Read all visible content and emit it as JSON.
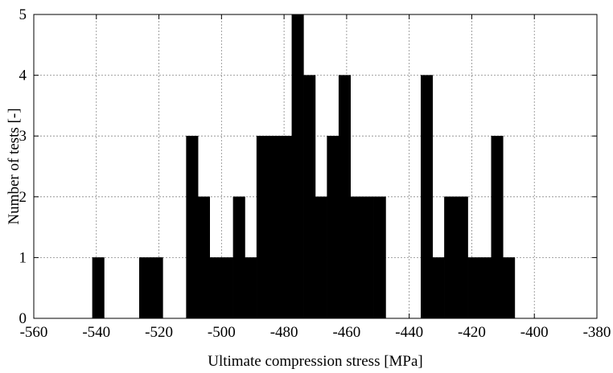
{
  "chart_data": {
    "type": "bar",
    "title": "",
    "xlabel": "Ultimate compression stress [MPa]",
    "ylabel": "Number of tests [-]",
    "xlim": [
      -560,
      -380
    ],
    "ylim": [
      0,
      5
    ],
    "xticks": [
      -560,
      -540,
      -520,
      -500,
      -480,
      -460,
      -440,
      -420,
      -400,
      -380
    ],
    "yticks": [
      0,
      1,
      2,
      3,
      4,
      5
    ],
    "grid": true,
    "bar_color": "#000000",
    "bin_width": 3.75,
    "bins": [
      {
        "x0": -541.25,
        "value": 1
      },
      {
        "x0": -526.25,
        "value": 1
      },
      {
        "x0": -522.5,
        "value": 1
      },
      {
        "x0": -511.25,
        "value": 3
      },
      {
        "x0": -507.5,
        "value": 2
      },
      {
        "x0": -503.75,
        "value": 1
      },
      {
        "x0": -500,
        "value": 1
      },
      {
        "x0": -496.25,
        "value": 2
      },
      {
        "x0": -492.5,
        "value": 1
      },
      {
        "x0": -488.75,
        "value": 3
      },
      {
        "x0": -485,
        "value": 3
      },
      {
        "x0": -481.25,
        "value": 3
      },
      {
        "x0": -477.5,
        "value": 5
      },
      {
        "x0": -473.75,
        "value": 4
      },
      {
        "x0": -470,
        "value": 2
      },
      {
        "x0": -466.25,
        "value": 3
      },
      {
        "x0": -462.5,
        "value": 4
      },
      {
        "x0": -458.75,
        "value": 2
      },
      {
        "x0": -455,
        "value": 2
      },
      {
        "x0": -451.25,
        "value": 2
      },
      {
        "x0": -436.25,
        "value": 4
      },
      {
        "x0": -432.5,
        "value": 1
      },
      {
        "x0": -428.75,
        "value": 2
      },
      {
        "x0": -425,
        "value": 2
      },
      {
        "x0": -421.25,
        "value": 1
      },
      {
        "x0": -417.5,
        "value": 1
      },
      {
        "x0": -413.75,
        "value": 3
      },
      {
        "x0": -410,
        "value": 1
      }
    ]
  }
}
